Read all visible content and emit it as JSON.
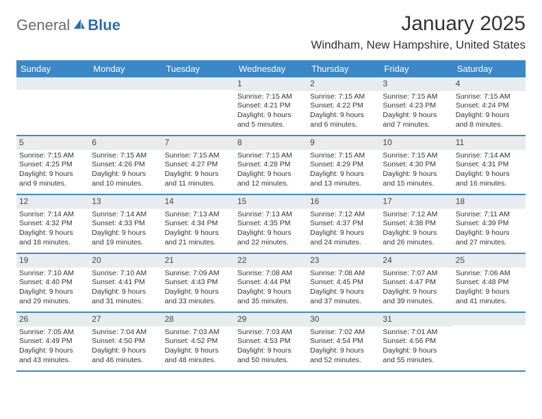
{
  "brand": {
    "text_general": "General",
    "text_blue": "Blue"
  },
  "title": "January 2025",
  "location": "Windham, New Hampshire, United States",
  "header_color": "#3b87c8",
  "daynum_band_color": "#e9ecef",
  "border_color": "#3b87c8",
  "text_color": "#333333",
  "font_size_title": 30,
  "font_size_location": 17,
  "font_size_header": 13,
  "font_size_cell": 10.5,
  "weekdays": [
    "Sunday",
    "Monday",
    "Tuesday",
    "Wednesday",
    "Thursday",
    "Friday",
    "Saturday"
  ],
  "weeks": [
    [
      {
        "day": "",
        "lines": []
      },
      {
        "day": "",
        "lines": []
      },
      {
        "day": "",
        "lines": []
      },
      {
        "day": "1",
        "lines": [
          "Sunrise: 7:15 AM",
          "Sunset: 4:21 PM",
          "Daylight: 9 hours",
          "and 5 minutes."
        ]
      },
      {
        "day": "2",
        "lines": [
          "Sunrise: 7:15 AM",
          "Sunset: 4:22 PM",
          "Daylight: 9 hours",
          "and 6 minutes."
        ]
      },
      {
        "day": "3",
        "lines": [
          "Sunrise: 7:15 AM",
          "Sunset: 4:23 PM",
          "Daylight: 9 hours",
          "and 7 minutes."
        ]
      },
      {
        "day": "4",
        "lines": [
          "Sunrise: 7:15 AM",
          "Sunset: 4:24 PM",
          "Daylight: 9 hours",
          "and 8 minutes."
        ]
      }
    ],
    [
      {
        "day": "5",
        "lines": [
          "Sunrise: 7:15 AM",
          "Sunset: 4:25 PM",
          "Daylight: 9 hours",
          "and 9 minutes."
        ]
      },
      {
        "day": "6",
        "lines": [
          "Sunrise: 7:15 AM",
          "Sunset: 4:26 PM",
          "Daylight: 9 hours",
          "and 10 minutes."
        ]
      },
      {
        "day": "7",
        "lines": [
          "Sunrise: 7:15 AM",
          "Sunset: 4:27 PM",
          "Daylight: 9 hours",
          "and 11 minutes."
        ]
      },
      {
        "day": "8",
        "lines": [
          "Sunrise: 7:15 AM",
          "Sunset: 4:28 PM",
          "Daylight: 9 hours",
          "and 12 minutes."
        ]
      },
      {
        "day": "9",
        "lines": [
          "Sunrise: 7:15 AM",
          "Sunset: 4:29 PM",
          "Daylight: 9 hours",
          "and 13 minutes."
        ]
      },
      {
        "day": "10",
        "lines": [
          "Sunrise: 7:15 AM",
          "Sunset: 4:30 PM",
          "Daylight: 9 hours",
          "and 15 minutes."
        ]
      },
      {
        "day": "11",
        "lines": [
          "Sunrise: 7:14 AM",
          "Sunset: 4:31 PM",
          "Daylight: 9 hours",
          "and 16 minutes."
        ]
      }
    ],
    [
      {
        "day": "12",
        "lines": [
          "Sunrise: 7:14 AM",
          "Sunset: 4:32 PM",
          "Daylight: 9 hours",
          "and 18 minutes."
        ]
      },
      {
        "day": "13",
        "lines": [
          "Sunrise: 7:14 AM",
          "Sunset: 4:33 PM",
          "Daylight: 9 hours",
          "and 19 minutes."
        ]
      },
      {
        "day": "14",
        "lines": [
          "Sunrise: 7:13 AM",
          "Sunset: 4:34 PM",
          "Daylight: 9 hours",
          "and 21 minutes."
        ]
      },
      {
        "day": "15",
        "lines": [
          "Sunrise: 7:13 AM",
          "Sunset: 4:35 PM",
          "Daylight: 9 hours",
          "and 22 minutes."
        ]
      },
      {
        "day": "16",
        "lines": [
          "Sunrise: 7:12 AM",
          "Sunset: 4:37 PM",
          "Daylight: 9 hours",
          "and 24 minutes."
        ]
      },
      {
        "day": "17",
        "lines": [
          "Sunrise: 7:12 AM",
          "Sunset: 4:38 PM",
          "Daylight: 9 hours",
          "and 26 minutes."
        ]
      },
      {
        "day": "18",
        "lines": [
          "Sunrise: 7:11 AM",
          "Sunset: 4:39 PM",
          "Daylight: 9 hours",
          "and 27 minutes."
        ]
      }
    ],
    [
      {
        "day": "19",
        "lines": [
          "Sunrise: 7:10 AM",
          "Sunset: 4:40 PM",
          "Daylight: 9 hours",
          "and 29 minutes."
        ]
      },
      {
        "day": "20",
        "lines": [
          "Sunrise: 7:10 AM",
          "Sunset: 4:41 PM",
          "Daylight: 9 hours",
          "and 31 minutes."
        ]
      },
      {
        "day": "21",
        "lines": [
          "Sunrise: 7:09 AM",
          "Sunset: 4:43 PM",
          "Daylight: 9 hours",
          "and 33 minutes."
        ]
      },
      {
        "day": "22",
        "lines": [
          "Sunrise: 7:08 AM",
          "Sunset: 4:44 PM",
          "Daylight: 9 hours",
          "and 35 minutes."
        ]
      },
      {
        "day": "23",
        "lines": [
          "Sunrise: 7:08 AM",
          "Sunset: 4:45 PM",
          "Daylight: 9 hours",
          "and 37 minutes."
        ]
      },
      {
        "day": "24",
        "lines": [
          "Sunrise: 7:07 AM",
          "Sunset: 4:47 PM",
          "Daylight: 9 hours",
          "and 39 minutes."
        ]
      },
      {
        "day": "25",
        "lines": [
          "Sunrise: 7:06 AM",
          "Sunset: 4:48 PM",
          "Daylight: 9 hours",
          "and 41 minutes."
        ]
      }
    ],
    [
      {
        "day": "26",
        "lines": [
          "Sunrise: 7:05 AM",
          "Sunset: 4:49 PM",
          "Daylight: 9 hours",
          "and 43 minutes."
        ]
      },
      {
        "day": "27",
        "lines": [
          "Sunrise: 7:04 AM",
          "Sunset: 4:50 PM",
          "Daylight: 9 hours",
          "and 46 minutes."
        ]
      },
      {
        "day": "28",
        "lines": [
          "Sunrise: 7:03 AM",
          "Sunset: 4:52 PM",
          "Daylight: 9 hours",
          "and 48 minutes."
        ]
      },
      {
        "day": "29",
        "lines": [
          "Sunrise: 7:03 AM",
          "Sunset: 4:53 PM",
          "Daylight: 9 hours",
          "and 50 minutes."
        ]
      },
      {
        "day": "30",
        "lines": [
          "Sunrise: 7:02 AM",
          "Sunset: 4:54 PM",
          "Daylight: 9 hours",
          "and 52 minutes."
        ]
      },
      {
        "day": "31",
        "lines": [
          "Sunrise: 7:01 AM",
          "Sunset: 4:56 PM",
          "Daylight: 9 hours",
          "and 55 minutes."
        ]
      },
      {
        "day": "",
        "lines": []
      }
    ]
  ]
}
